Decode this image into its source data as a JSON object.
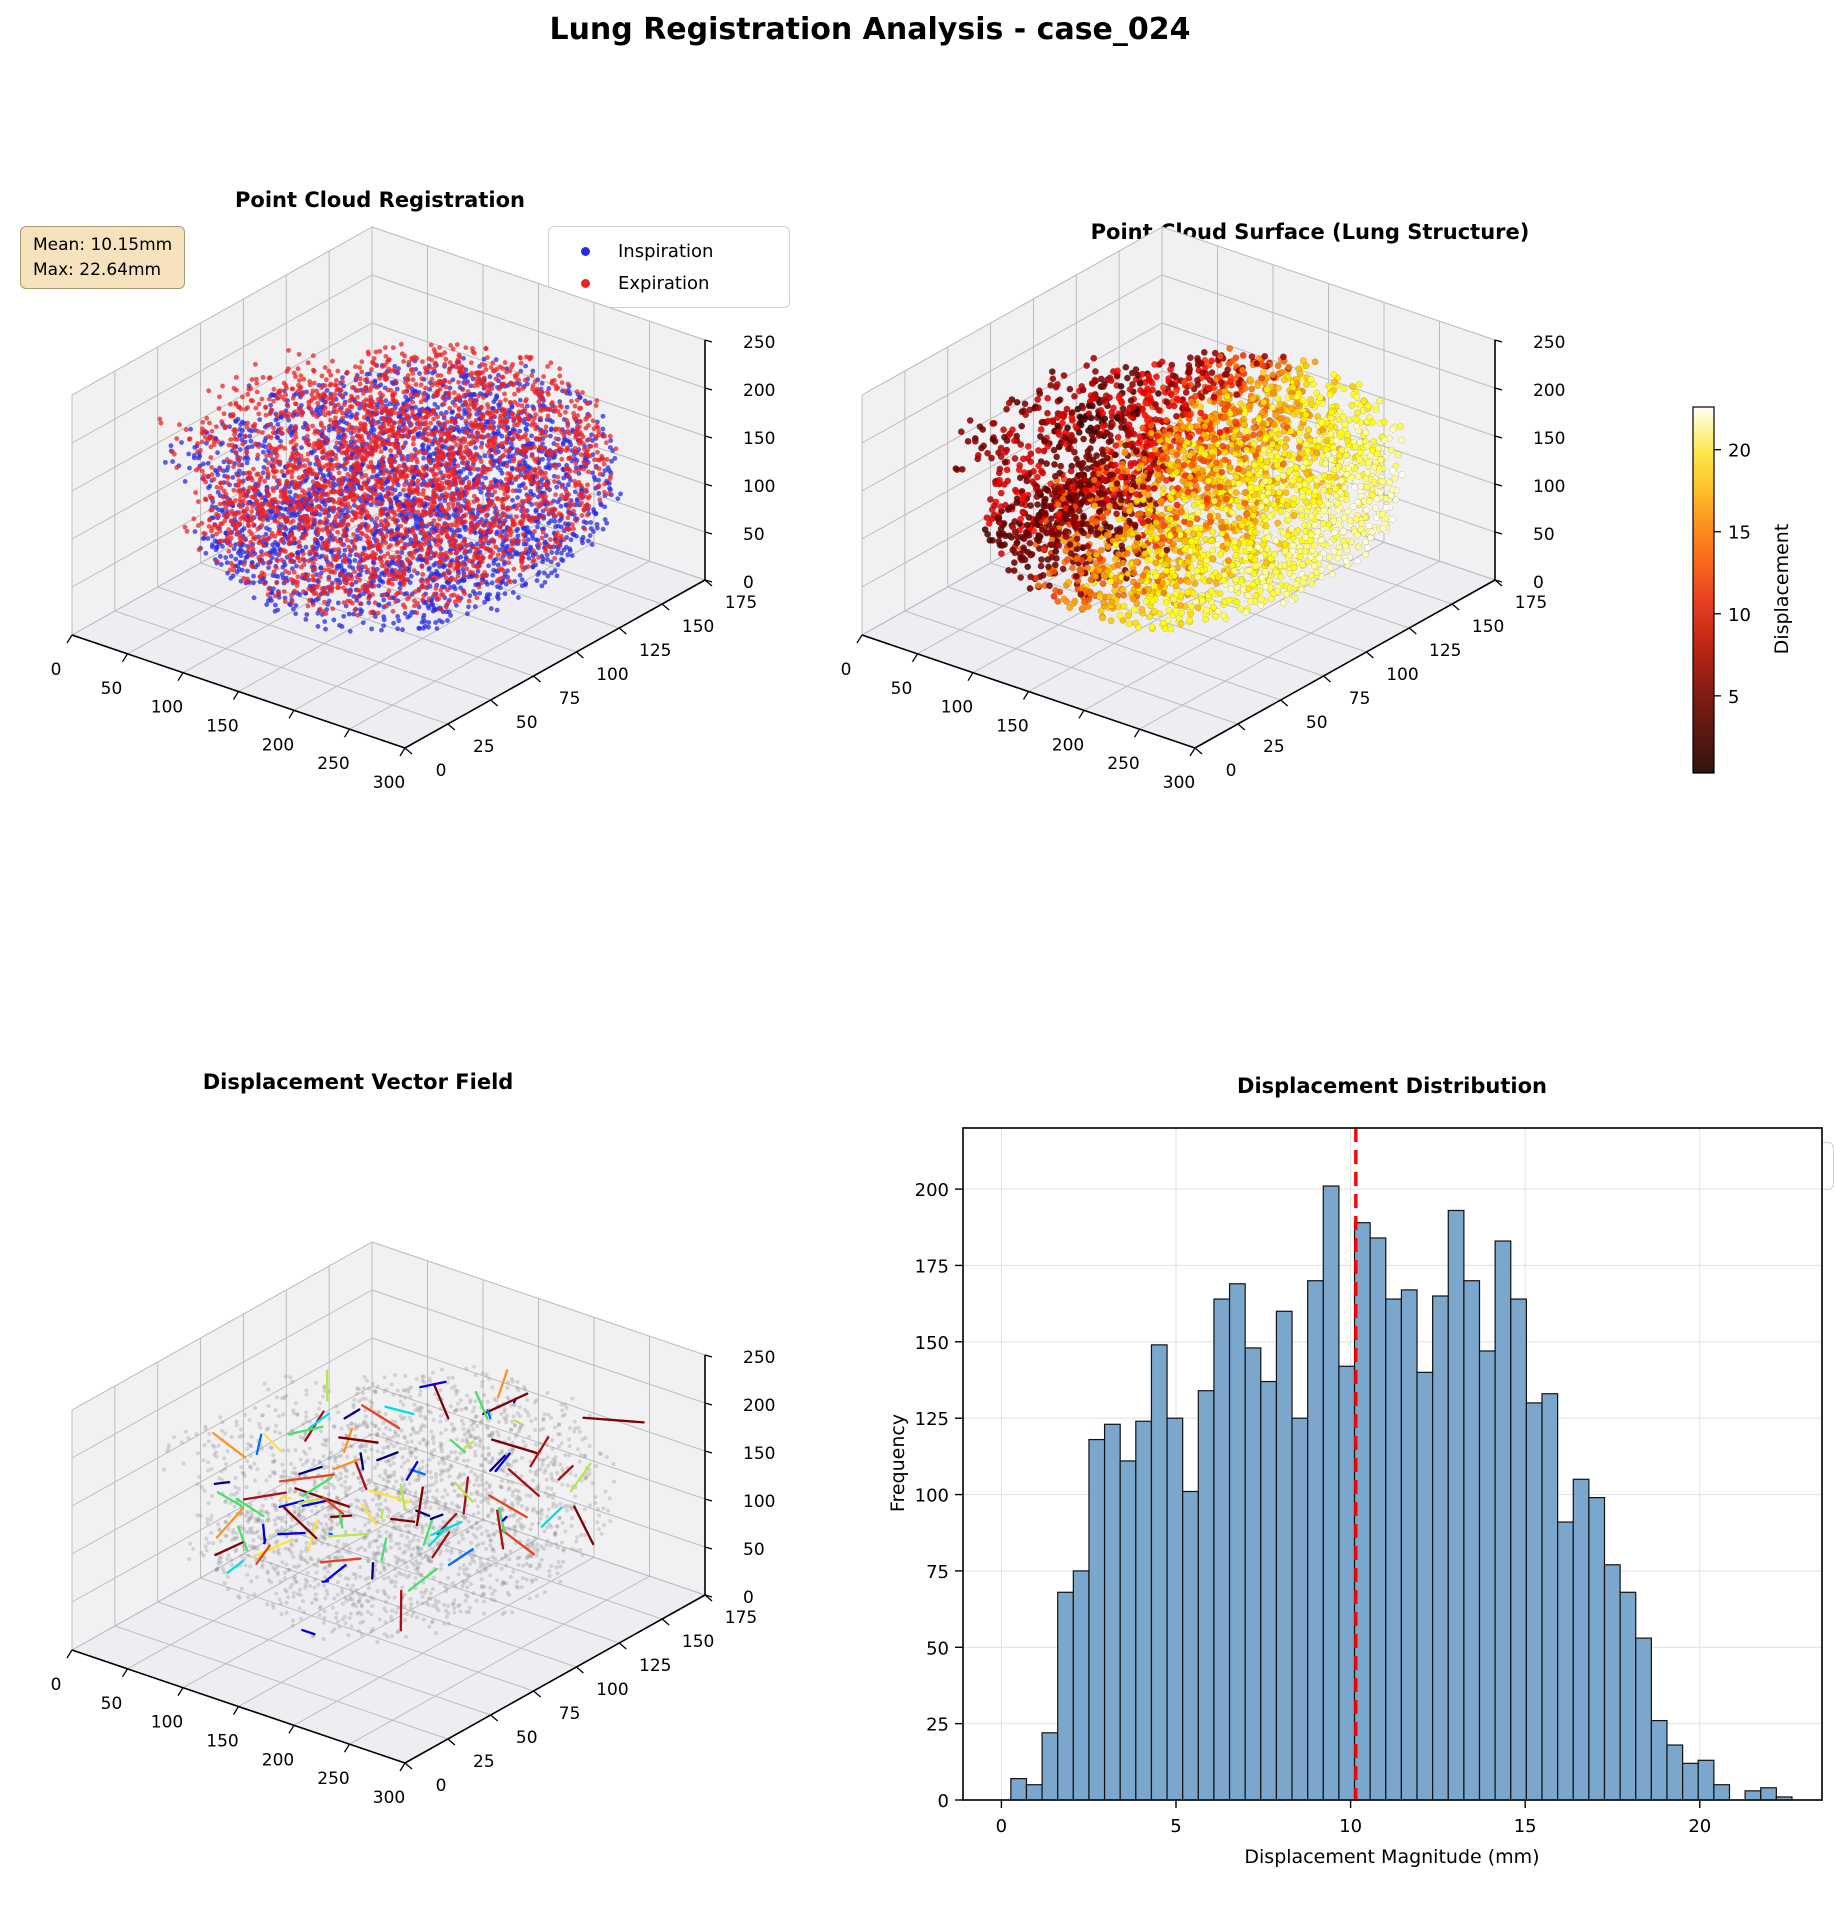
{
  "figure": {
    "title": "Lung Registration Analysis - case_024",
    "background": "#ffffff"
  },
  "chart_data": [
    {
      "id": "registration",
      "type": "scatter3d",
      "title": "Point Cloud Registration",
      "legend": [
        {
          "label": "Inspiration",
          "color": "#2a2ae0"
        },
        {
          "label": "Expiration",
          "color": "#ee2121"
        }
      ],
      "annotation": {
        "line1": "Mean: 10.15mm",
        "line2": "Max: 22.64mm"
      },
      "axis": {
        "x_ticks": [
          0,
          50,
          100,
          150,
          200,
          250,
          300
        ],
        "y_ticks": [
          0,
          25,
          50,
          75,
          100,
          125,
          150,
          175
        ],
        "z_ticks": [
          0,
          50,
          100,
          150,
          200,
          250
        ]
      },
      "points": {
        "n_per_series": 2800,
        "marker_px": 2.4,
        "opacity": 0.75
      }
    },
    {
      "id": "surface",
      "type": "scatter3d",
      "title": "Point Cloud Surface (Lung Structure)",
      "colorbar": {
        "label": "Displacement",
        "ticks": [
          5,
          10,
          15,
          20
        ],
        "vmin": 0.3,
        "vmax": 22.6,
        "colormap": "hot"
      },
      "axis": {
        "x_ticks": [
          0,
          50,
          100,
          150,
          200,
          250,
          300
        ],
        "y_ticks": [
          0,
          25,
          50,
          75,
          100,
          125,
          150,
          175
        ],
        "z_ticks": [
          0,
          50,
          100,
          150,
          200,
          250
        ]
      },
      "points": {
        "n": 3400,
        "marker_px": 3.2,
        "opacity": 0.88
      }
    },
    {
      "id": "vector_field",
      "type": "quiver3d",
      "title": "Displacement Vector Field",
      "axis": {
        "x_ticks": [
          0,
          50,
          100,
          150,
          200,
          250,
          300
        ],
        "y_ticks": [
          0,
          25,
          50,
          75,
          100,
          125,
          150,
          175
        ],
        "z_ticks": [
          0,
          50,
          100,
          150,
          200,
          250
        ]
      },
      "points": {
        "n": 2100,
        "color": "#8a8a8a",
        "opacity": 0.3,
        "marker_px": 2
      },
      "vectors": {
        "n": 95,
        "palette": [
          "#00007f",
          "#0000e0",
          "#0070ff",
          "#00e0e0",
          "#49df6a",
          "#b6e84a",
          "#ffe13a",
          "#ff9123",
          "#e8401c",
          "#a50f15",
          "#7f0000"
        ]
      }
    },
    {
      "id": "histogram",
      "type": "bar",
      "title": "Displacement Distribution",
      "xlabel": "Displacement Magnitude (mm)",
      "ylabel": "Frequency",
      "bin_start": 0.27,
      "bin_width": 0.4474,
      "values": [
        7,
        5,
        22,
        68,
        75,
        118,
        123,
        111,
        124,
        149,
        125,
        101,
        134,
        164,
        169,
        148,
        137,
        160,
        125,
        170,
        201,
        142,
        189,
        184,
        164,
        167,
        140,
        165,
        193,
        170,
        147,
        183,
        164,
        130,
        133,
        91,
        105,
        99,
        77,
        68,
        53,
        26,
        18,
        12,
        13,
        5,
        0,
        3,
        4,
        1
      ],
      "x_ticks": [
        0,
        5,
        10,
        15,
        20
      ],
      "y_ticks": [
        0,
        25,
        50,
        75,
        100,
        125,
        150,
        175,
        200
      ],
      "xlim": [
        -1.1,
        23.5
      ],
      "ylim": [
        0,
        220
      ],
      "bar_color": "#7ba7cc",
      "bar_edge": "#111111",
      "grid": true,
      "mean": {
        "value": 10.15,
        "label": "Mean: 10.15mm",
        "color": "#ff0000"
      }
    }
  ]
}
